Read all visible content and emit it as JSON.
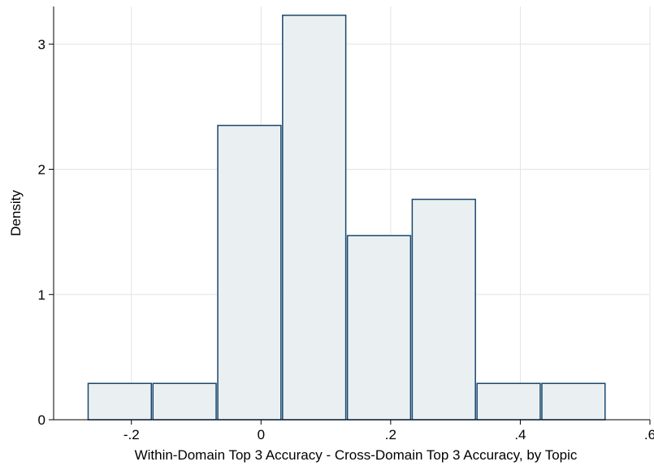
{
  "chart_data": {
    "type": "bar",
    "subtype": "histogram",
    "xlabel": "Within-Domain Top 3 Accuracy - Cross-Domain Top 3 Accuracy, by Topic",
    "ylabel": "Density",
    "xlim": [
      -0.32,
      0.6
    ],
    "ylim": [
      0,
      3.3
    ],
    "x_ticks": [
      {
        "value": -0.2,
        "label": "-.2"
      },
      {
        "value": 0,
        "label": "0"
      },
      {
        "value": 0.2,
        "label": ".2"
      },
      {
        "value": 0.4,
        "label": ".4"
      },
      {
        "value": 0.6,
        "label": ".6"
      }
    ],
    "y_ticks": [
      {
        "value": 0,
        "label": "0"
      },
      {
        "value": 1,
        "label": "1"
      },
      {
        "value": 2,
        "label": "2"
      },
      {
        "value": 3,
        "label": "3"
      }
    ],
    "bins": [
      {
        "start": -0.268,
        "end": -0.168,
        "density": 0.29
      },
      {
        "start": -0.168,
        "end": -0.068,
        "density": 0.29
      },
      {
        "start": -0.068,
        "end": 0.032,
        "density": 2.35
      },
      {
        "start": 0.032,
        "end": 0.132,
        "density": 3.23
      },
      {
        "start": 0.132,
        "end": 0.232,
        "density": 1.47
      },
      {
        "start": 0.232,
        "end": 0.332,
        "density": 1.76
      },
      {
        "start": 0.332,
        "end": 0.432,
        "density": 0.29
      },
      {
        "start": 0.432,
        "end": 0.532,
        "density": 0.29
      }
    ],
    "grid": true,
    "bar_fill": "#eaf0f2",
    "bar_stroke": "#1a476f"
  }
}
